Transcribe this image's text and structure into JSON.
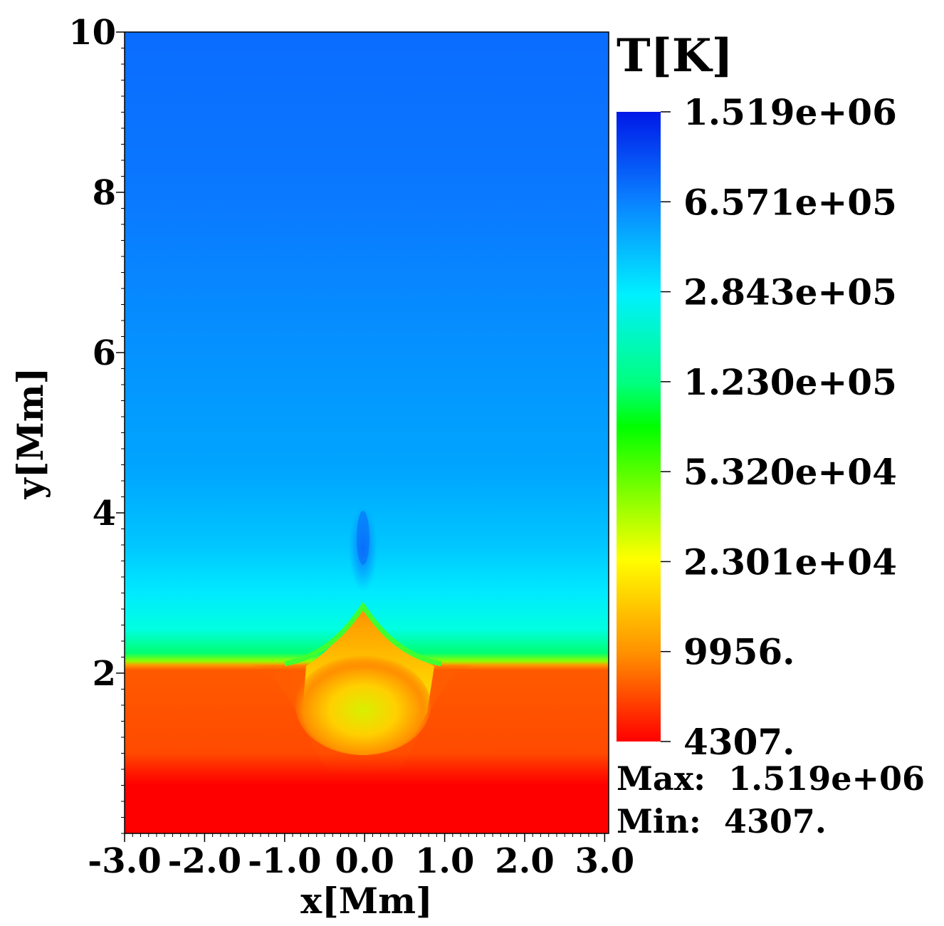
{
  "chart_data": {
    "type": "heatmap",
    "title": "",
    "xlabel": "x[Mm]",
    "ylabel": "y[Mm]",
    "xlim": [
      -3.0,
      3.05
    ],
    "ylim": [
      0,
      10
    ],
    "x_ticks": [
      -3.0,
      -2.0,
      -1.0,
      0.0,
      1.0,
      2.0,
      3.0
    ],
    "x_tick_labels": [
      "-3.0",
      "-2.0",
      "-1.0",
      "0.0",
      "1.0",
      "2.0",
      "3.0"
    ],
    "y_ticks": [
      2,
      4,
      6,
      8,
      10
    ],
    "y_tick_labels": [
      "2",
      "4",
      "6",
      "8",
      "10"
    ],
    "colorbar": {
      "title": "T[K]",
      "scale": "log",
      "colormap": "jet-reversed",
      "ticks": [
        1519000,
        657100,
        284300,
        123000,
        53200,
        23010,
        9956,
        4307
      ],
      "tick_labels": [
        "1.519e+06",
        "6.571e+05",
        "2.843e+05",
        "1.230e+05",
        "5.320e+04",
        "2.301e+04",
        "9956.",
        "4307."
      ],
      "colors": [
        "#0018e8",
        "#0a80ff",
        "#00f0ff",
        "#00ff80",
        "#00ff00",
        "#ffff00",
        "#ff9000",
        "#ff0000"
      ]
    },
    "field_description": {
      "photosphere_temperature_K": 4307,
      "chromosphere_temperature_K": 6500,
      "transition_region_height_Mm": 2.1,
      "corona_temperature_K": [
        284300,
        800000
      ],
      "jet_peak_height_Mm": 2.85,
      "hot_blob_top_Mm": 4.05
    },
    "stats": {
      "max_label": "Max:",
      "max_value": "1.519e+06",
      "min_label": "Min:",
      "min_value": "4307."
    }
  }
}
